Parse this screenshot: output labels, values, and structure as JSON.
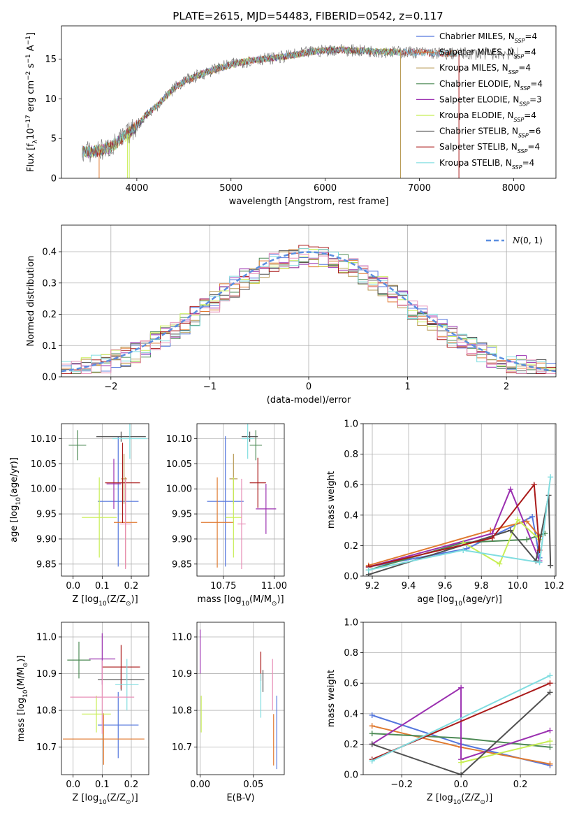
{
  "title": "PLATE=2615, MJD=54483, FIBERID=0542, z=0.117",
  "colors": {
    "Chabrier MILES": "#5577dd",
    "Salpeter MILES": "#e07a30",
    "Kroupa MILES": "#b89a55",
    "Chabrier ELODIE": "#4d8a55",
    "Salpeter ELODIE": "#9b30b0",
    "Kroupa ELODIE": "#c8ee55",
    "Chabrier STELIB": "#505050",
    "Salpeter STELIB": "#aa1a1a",
    "Kroupa STELIB": "#80dde0",
    "pink": "#e890b8",
    "normal": "#5b8ee0"
  },
  "chart_data": [
    {
      "id": "spectrum",
      "type": "line",
      "xlabel": "wavelength [Angstrom, rest frame]",
      "ylabel": "Flux [f_λ10^-17 erg cm^-2 s^-1 A^-1]",
      "xlim": [
        3200,
        8450
      ],
      "ylim": [
        0,
        19.2
      ],
      "xticks": [
        "4000",
        "5000",
        "6000",
        "7000",
        "8000"
      ],
      "yticks": [
        "0",
        "5",
        "10",
        "15"
      ],
      "legend_position": "right",
      "legend": [
        {
          "name": "Chabrier MILES",
          "nssp": "4"
        },
        {
          "name": "Salpeter MILES",
          "nssp": "4"
        },
        {
          "name": "Kroupa MILES",
          "nssp": "4"
        },
        {
          "name": "Chabrier ELODIE",
          "nssp": "4"
        },
        {
          "name": "Salpeter ELODIE",
          "nssp": "3"
        },
        {
          "name": "Kroupa ELODIE",
          "nssp": "4"
        },
        {
          "name": "Chabrier STELIB",
          "nssp": "6"
        },
        {
          "name": "Salpeter STELIB",
          "nssp": "4"
        },
        {
          "name": "Kroupa STELIB",
          "nssp": "4"
        }
      ],
      "continuum": {
        "x": [
          3420,
          3500,
          3600,
          3700,
          3800,
          3900,
          4000,
          4100,
          4200,
          4300,
          4400,
          4500,
          4700,
          4900,
          5100,
          5300,
          5500,
          5700,
          5900,
          6100,
          6300,
          6500,
          6700,
          6900,
          7100,
          7300
        ],
        "y": [
          3.4,
          3.3,
          3.5,
          3.8,
          4.6,
          5.5,
          6.6,
          8.0,
          9.0,
          10.2,
          11.4,
          12.2,
          13.2,
          14.0,
          14.6,
          15.0,
          15.2,
          15.6,
          16.0,
          16.2,
          16.1,
          16.0,
          15.9,
          15.9,
          15.8,
          15.7
        ]
      },
      "cutoffs": [
        {
          "model": "Salpeter MILES",
          "wavelength": 3600
        },
        {
          "model": "Kroupa ELODIE",
          "wavelength": 3900
        },
        {
          "model": "Kroupa ELODIE",
          "wavelength": 3920
        },
        {
          "model": "Kroupa MILES",
          "wavelength": 6800
        },
        {
          "model": "Salpeter STELIB",
          "wavelength": 7420
        }
      ]
    },
    {
      "id": "residuals",
      "type": "histogram",
      "xlabel": "(data-model)/error",
      "ylabel": "Normed distribution",
      "xlim": [
        -2.5,
        2.5
      ],
      "ylim": [
        0,
        0.485
      ],
      "xticks": [
        "−2",
        "−1",
        "0",
        "1",
        "2"
      ],
      "yticks": [
        "0.0",
        "0.1",
        "0.2",
        "0.3",
        "0.4"
      ],
      "grid": true,
      "legend_position": "top-right",
      "legend_label": "N(0,1)",
      "normal": {
        "mean": 0,
        "sigma": 1
      },
      "bin_width": 0.1
    },
    {
      "id": "age-vs-Z",
      "type": "errorbar",
      "xlabel": "Z [log10(Z/Z⊙)]",
      "ylabel": "age [log10(age/yr)]",
      "xlim": [
        -0.04,
        0.26
      ],
      "ylim": [
        9.826,
        10.13
      ],
      "xticks": [
        "0.0",
        "0.1",
        "0.2"
      ],
      "yticks": [
        "9.85",
        "9.90",
        "9.95",
        "10.00",
        "10.05",
        "10.10"
      ],
      "grid": true,
      "points": [
        {
          "model": "Chabrier MILES",
          "x": 0.155,
          "xerr": 0.07,
          "y": 9.975,
          "yerr": 0.13
        },
        {
          "model": "Salpeter MILES",
          "x": 0.18,
          "xerr": 0.04,
          "y": 9.933,
          "yerr": 0.09
        },
        {
          "model": "Kroupa MILES",
          "x": 0.175,
          "xerr": 0.01,
          "y": 10.02,
          "yerr": 0.05
        },
        {
          "model": "Chabrier ELODIE",
          "x": 0.015,
          "xerr": 0.03,
          "y": 10.087,
          "yerr": 0.03
        },
        {
          "model": "Salpeter ELODIE",
          "x": 0.14,
          "xerr": 0.025,
          "y": 10.01,
          "yerr": 0.05
        },
        {
          "model": "Kroupa ELODIE",
          "x": 0.09,
          "xerr": 0.06,
          "y": 9.943,
          "yerr": 0.08
        },
        {
          "model": "Chabrier STELIB",
          "x": 0.165,
          "xerr": 0.085,
          "y": 10.104,
          "yerr": 0.01
        },
        {
          "model": "Salpeter STELIB",
          "x": 0.17,
          "xerr": 0.06,
          "y": 10.012,
          "yerr": 0.08
        },
        {
          "model": "Kroupa STELIB",
          "x": 0.195,
          "xerr": 0.06,
          "y": 10.1,
          "yerr": 0.04
        },
        {
          "model": "pink",
          "x": 0.18,
          "xerr": 0.02,
          "y": 9.93,
          "yerr": 0.09
        }
      ]
    },
    {
      "id": "age-vs-mass",
      "type": "errorbar",
      "xlabel": "mass [log10(M/M⊙)]",
      "ylabel": "",
      "xlim": [
        10.62,
        11.05
      ],
      "ylim": [
        9.826,
        10.13
      ],
      "xticks": [
        "10.75",
        "11.00"
      ],
      "yticks": [
        "9.85",
        "9.90",
        "9.95",
        "10.00",
        "10.05",
        "10.10"
      ],
      "grid": true,
      "points": [
        {
          "model": "Chabrier MILES",
          "x": 10.76,
          "xerr": 0.09,
          "y": 9.975,
          "yerr": 0.13
        },
        {
          "model": "Salpeter MILES",
          "x": 10.72,
          "xerr": 0.08,
          "y": 9.933,
          "yerr": 0.09
        },
        {
          "model": "Kroupa MILES",
          "x": 10.8,
          "xerr": 0.02,
          "y": 10.02,
          "yerr": 0.05
        },
        {
          "model": "Chabrier ELODIE",
          "x": 10.91,
          "xerr": 0.03,
          "y": 10.087,
          "yerr": 0.03
        },
        {
          "model": "Salpeter ELODIE",
          "x": 10.96,
          "xerr": 0.05,
          "y": 9.96,
          "yerr": 0.05
        },
        {
          "model": "Kroupa ELODIE",
          "x": 10.8,
          "xerr": 0.04,
          "y": 9.943,
          "yerr": 0.08
        },
        {
          "model": "Chabrier STELIB",
          "x": 10.88,
          "xerr": 0.04,
          "y": 10.104,
          "yerr": 0.01
        },
        {
          "model": "Salpeter STELIB",
          "x": 10.92,
          "xerr": 0.04,
          "y": 10.012,
          "yerr": 0.05
        },
        {
          "model": "Kroupa STELIB",
          "x": 10.87,
          "xerr": 0.03,
          "y": 10.1,
          "yerr": 0.04
        },
        {
          "model": "pink",
          "x": 10.84,
          "xerr": 0.02,
          "y": 9.93,
          "yerr": 0.09
        }
      ]
    },
    {
      "id": "weight-vs-age",
      "type": "line",
      "xlabel": "age [log10(age/yr)]",
      "ylabel": "mass weight",
      "xlim": [
        9.15,
        10.21
      ],
      "ylim": [
        0,
        1.0
      ],
      "xticks": [
        "9.2",
        "9.4",
        "9.6",
        "9.8",
        "10.0",
        "10.2"
      ],
      "yticks": [
        "0.0",
        "0.2",
        "0.4",
        "0.6",
        "0.8",
        "1.0"
      ],
      "grid": true,
      "series": [
        {
          "model": "Chabrier MILES",
          "x": [
            9.18,
            9.72,
            10.08,
            10.12
          ],
          "y": [
            0.06,
            0.18,
            0.39,
            0.12
          ]
        },
        {
          "model": "Salpeter MILES",
          "x": [
            9.18,
            9.85,
            10.05,
            10.12
          ],
          "y": [
            0.07,
            0.3,
            0.36,
            0.26
          ]
        },
        {
          "model": "Chabrier ELODIE",
          "x": [
            9.18,
            9.7,
            10.05,
            10.15
          ],
          "y": [
            0.04,
            0.22,
            0.24,
            0.28
          ]
        },
        {
          "model": "Salpeter ELODIE",
          "x": [
            9.18,
            9.86,
            9.96,
            10.12
          ],
          "y": [
            0.06,
            0.28,
            0.57,
            0.1
          ]
        },
        {
          "model": "Kroupa ELODIE",
          "x": [
            9.7,
            9.9,
            10.0,
            10.12
          ],
          "y": [
            0.22,
            0.08,
            0.37,
            0.24
          ]
        },
        {
          "model": "Chabrier STELIB",
          "x": [
            9.18,
            9.96,
            10.1,
            10.17,
            10.18
          ],
          "y": [
            0.01,
            0.3,
            0.1,
            0.53,
            0.07
          ]
        },
        {
          "model": "Salpeter STELIB",
          "x": [
            9.18,
            9.86,
            10.09,
            10.12
          ],
          "y": [
            0.06,
            0.25,
            0.6,
            0.17
          ]
        },
        {
          "model": "Kroupa STELIB",
          "x": [
            9.18,
            9.7,
            10.12,
            10.18
          ],
          "y": [
            0.04,
            0.17,
            0.09,
            0.65
          ]
        }
      ]
    },
    {
      "id": "mass-vs-Z",
      "type": "errorbar",
      "xlabel": "Z [log10(Z/Z⊙)]",
      "ylabel": "mass [log10(M/M⊙)]",
      "xlim": [
        -0.04,
        0.26
      ],
      "ylim": [
        10.625,
        11.04
      ],
      "xticks": [
        "0.0",
        "0.1",
        "0.2"
      ],
      "yticks": [
        "10.7",
        "10.8",
        "10.9",
        "11.0"
      ],
      "grid": true,
      "points": [
        {
          "model": "Chabrier MILES",
          "x": 0.155,
          "xerr": 0.07,
          "y": 10.76,
          "yerr": 0.09
        },
        {
          "model": "Salpeter MILES",
          "x": 0.105,
          "xerr": 0.14,
          "y": 10.722,
          "yerr": 0.07
        },
        {
          "model": "Chabrier ELODIE",
          "x": 0.02,
          "xerr": 0.04,
          "y": 10.937,
          "yerr": 0.05
        },
        {
          "model": "Salpeter ELODIE",
          "x": 0.1,
          "xerr": 0.045,
          "y": 10.94,
          "yerr": 0.07
        },
        {
          "model": "Kroupa ELODIE",
          "x": 0.08,
          "xerr": 0.05,
          "y": 10.79,
          "yerr": 0.05
        },
        {
          "model": "Chabrier STELIB",
          "x": 0.165,
          "xerr": 0.08,
          "y": 10.884,
          "yerr": 0.03
        },
        {
          "model": "Salpeter STELIB",
          "x": 0.165,
          "xerr": 0.065,
          "y": 10.918,
          "yerr": 0.06
        },
        {
          "model": "Kroupa STELIB",
          "x": 0.185,
          "xerr": 0.04,
          "y": 10.87,
          "yerr": 0.07
        },
        {
          "model": "pink",
          "x": 0.1,
          "xerr": 0.11,
          "y": 10.836,
          "yerr": 0.1
        }
      ]
    },
    {
      "id": "mass-vs-EBV",
      "type": "errorbar",
      "xlabel": "E(B-V)",
      "ylabel": "",
      "xlim": [
        -0.003,
        0.079
      ],
      "ylim": [
        10.625,
        11.04
      ],
      "xticks": [
        "0.00",
        "0.05"
      ],
      "yticks": [
        "10.7",
        "10.8",
        "10.9",
        "11.0"
      ],
      "grid": true,
      "points": [
        {
          "model": "Salpeter ELODIE",
          "x": 0.0,
          "xerr": 0,
          "y": 10.96,
          "yerr": 0.06
        },
        {
          "model": "Kroupa ELODIE",
          "x": 0.001,
          "xerr": 0,
          "y": 10.79,
          "yerr": 0.05
        },
        {
          "model": "Salpeter STELIB",
          "x": 0.057,
          "xerr": 0,
          "y": 10.92,
          "yerr": 0.04
        },
        {
          "model": "Kroupa STELIB",
          "x": 0.057,
          "xerr": 0,
          "y": 10.84,
          "yerr": 0.06
        },
        {
          "model": "Chabrier STELIB",
          "x": 0.059,
          "xerr": 0,
          "y": 10.88,
          "yerr": 0.03
        },
        {
          "model": "pink",
          "x": 0.068,
          "xerr": 0,
          "y": 10.87,
          "yerr": 0.07
        },
        {
          "model": "Salpeter MILES",
          "x": 0.069,
          "xerr": 0,
          "y": 10.72,
          "yerr": 0.07
        },
        {
          "model": "Chabrier MILES",
          "x": 0.072,
          "xerr": 0,
          "y": 10.74,
          "yerr": 0.1
        }
      ]
    },
    {
      "id": "weight-vs-Z",
      "type": "line",
      "xlabel": "Z [log10(Z/Z⊙)]",
      "ylabel": "mass weight",
      "xlim": [
        -0.33,
        0.32
      ],
      "ylim": [
        0,
        1.0
      ],
      "xticks": [
        "−0.2",
        "0.0",
        "0.2"
      ],
      "yticks": [
        "0.0",
        "0.2",
        "0.4",
        "0.6",
        "0.8",
        "1.0"
      ],
      "grid": true,
      "series": [
        {
          "model": "Chabrier MILES",
          "x": [
            -0.3,
            0.0,
            0.3
          ],
          "y": [
            0.39,
            0.2,
            0.06
          ]
        },
        {
          "model": "Salpeter MILES",
          "x": [
            -0.3,
            0.0,
            0.3
          ],
          "y": [
            0.32,
            0.18,
            0.07
          ]
        },
        {
          "model": "Chabrier ELODIE",
          "x": [
            -0.3,
            0.0,
            0.3
          ],
          "y": [
            0.27,
            0.24,
            0.18
          ]
        },
        {
          "model": "Salpeter ELODIE",
          "x": [
            -0.3,
            0.0,
            0.0,
            0.3
          ],
          "y": [
            0.2,
            0.57,
            0.1,
            0.29
          ]
        },
        {
          "model": "Kroupa ELODIE",
          "x": [
            0.0,
            0.3
          ],
          "y": [
            0.08,
            0.22
          ]
        },
        {
          "model": "Chabrier STELIB",
          "x": [
            -0.3,
            0.0,
            0.3
          ],
          "y": [
            0.2,
            0.0,
            0.54
          ]
        },
        {
          "model": "Salpeter STELIB",
          "x": [
            -0.3,
            0.3
          ],
          "y": [
            0.1,
            0.6
          ]
        },
        {
          "model": "Kroupa STELIB",
          "x": [
            -0.3,
            0.3
          ],
          "y": [
            0.09,
            0.65
          ]
        }
      ]
    }
  ]
}
